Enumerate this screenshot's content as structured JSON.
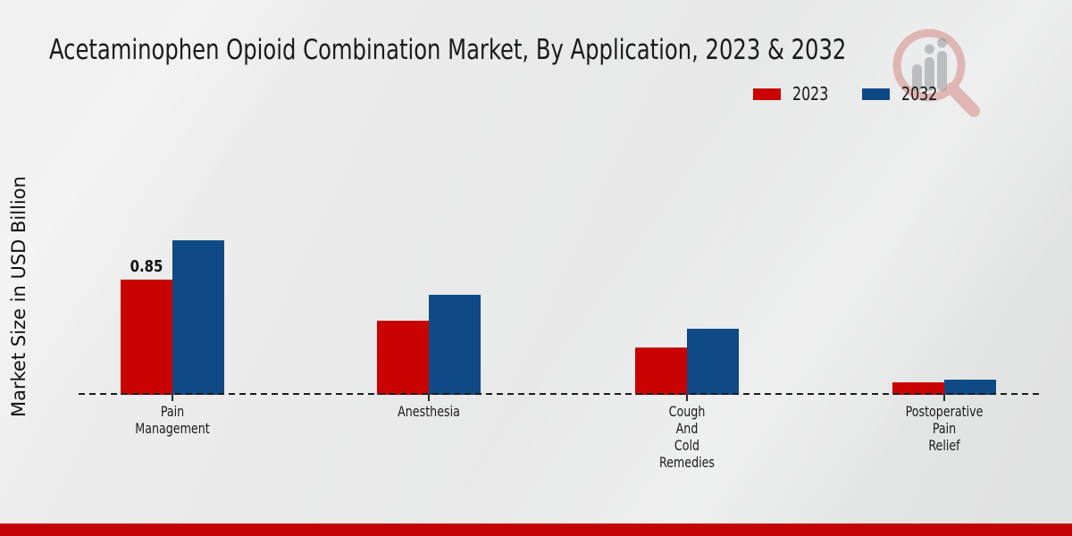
{
  "title": "Acetaminophen Opioid Combination Market, By Application, 2023 & 2032",
  "y_axis_label": "Market Size in USD Billion",
  "legend": [
    {
      "label": "2023",
      "color": "#c90302"
    },
    {
      "label": "2032",
      "color": "#0f4a87"
    }
  ],
  "colors": {
    "bar_2023": "#c90302",
    "bar_2032": "#0f4a87",
    "footer_stripe": "#c40404",
    "baseline": "#1d1d1d"
  },
  "watermark": {
    "name": "magnifier-bar-chart-brand-logo"
  },
  "footer": {},
  "chart_data": {
    "type": "bar",
    "categories": [
      {
        "label": "Pain Management",
        "lines": [
          "Pain",
          "Management"
        ]
      },
      {
        "label": "Anesthesia",
        "lines": [
          "Anesthesia"
        ]
      },
      {
        "label": "Cough And Cold Remedies",
        "lines": [
          "Cough",
          "And",
          "Cold",
          "Remedies"
        ]
      },
      {
        "label": "Postoperative Pain Relief",
        "lines": [
          "Postoperative",
          "Pain",
          "Relief"
        ]
      }
    ],
    "series": [
      {
        "name": "2023",
        "color": "#c90302",
        "values": [
          0.85,
          0.55,
          0.35,
          0.09
        ]
      },
      {
        "name": "2032",
        "color": "#0f4a87",
        "values": [
          1.14,
          0.74,
          0.49,
          0.11
        ]
      }
    ],
    "annotations": [
      {
        "text": "0.85",
        "series": "2023",
        "category_index": 0
      }
    ],
    "title": "Acetaminophen Opioid Combination Market, By Application, 2023 & 2032",
    "xlabel": "",
    "ylabel": "Market Size in USD Billion",
    "ylim": [
      0,
      1.25
    ],
    "grid": false,
    "baseline_style": "dashed",
    "legend_position": "top-right"
  }
}
